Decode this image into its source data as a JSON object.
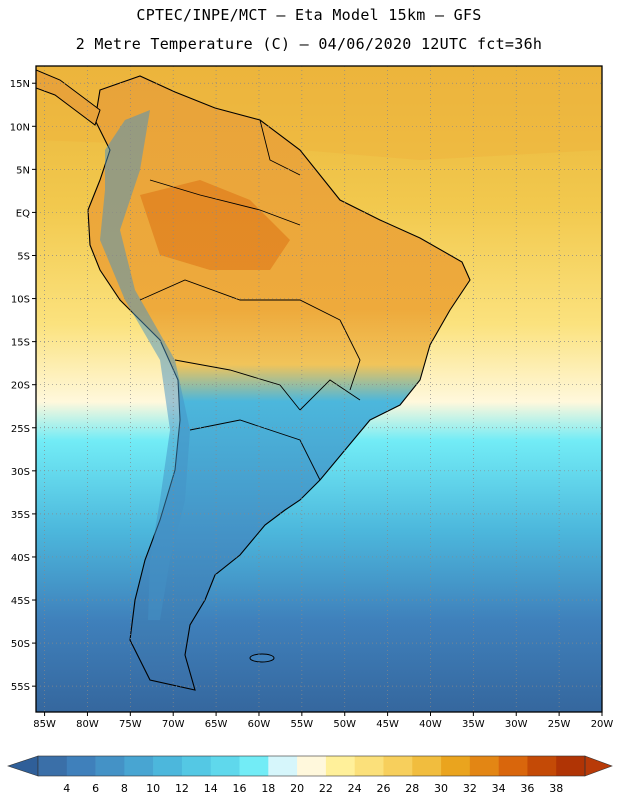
{
  "header": {
    "line1": "CPTEC/INPE/MCT –  Eta Model 15km – GFS",
    "line2": "2 Metre Temperature (C) – 04/06/2020 12UTC fct=36h"
  },
  "axes": {
    "lat_labels": [
      "15N",
      "10N",
      "5N",
      "EQ",
      "5S",
      "10S",
      "15S",
      "20S",
      "25S",
      "30S",
      "35S",
      "40S",
      "45S",
      "50S",
      "55S"
    ],
    "lat_values": [
      15,
      10,
      5,
      0,
      -5,
      -10,
      -15,
      -20,
      -25,
      -30,
      -35,
      -40,
      -45,
      -50,
      -55
    ],
    "lon_labels": [
      "85W",
      "80W",
      "75W",
      "70W",
      "65W",
      "60W",
      "55W",
      "50W",
      "45W",
      "40W",
      "35W",
      "30W",
      "25W",
      "20W"
    ],
    "lon_values": [
      -85,
      -80,
      -75,
      -70,
      -65,
      -60,
      -55,
      -50,
      -45,
      -40,
      -35,
      -30,
      -25,
      -20
    ],
    "lat_range": [
      -58,
      17
    ],
    "lon_range": [
      -86,
      -20
    ]
  },
  "colorbar": {
    "labels": [
      "4",
      "6",
      "8",
      "10",
      "12",
      "14",
      "16",
      "18",
      "20",
      "22",
      "24",
      "26",
      "28",
      "30",
      "32",
      "34",
      "36",
      "38"
    ],
    "colors": [
      "#3a6fa8",
      "#3f80bb",
      "#4492c6",
      "#48a5d2",
      "#4cb7dc",
      "#54c8e4",
      "#5fd8ec",
      "#72ecf6",
      "#d6f6fb",
      "#fff8dc",
      "#fff09a",
      "#fbe07a",
      "#f7cf5c",
      "#f1bd3e",
      "#eaa41e",
      "#e38614",
      "#d9660c",
      "#c44a06",
      "#b03405"
    ],
    "left_arrow_color": "#2f5f99",
    "right_arrow_color": "#b83a08"
  },
  "map": {
    "ocean_gradient": [
      "#e9b43a",
      "#f2c94e",
      "#fbe27e",
      "#fff8dc",
      "#72ecf6",
      "#4cb7dc",
      "#3f80bb",
      "#35679e"
    ],
    "grid": "dotted"
  }
}
